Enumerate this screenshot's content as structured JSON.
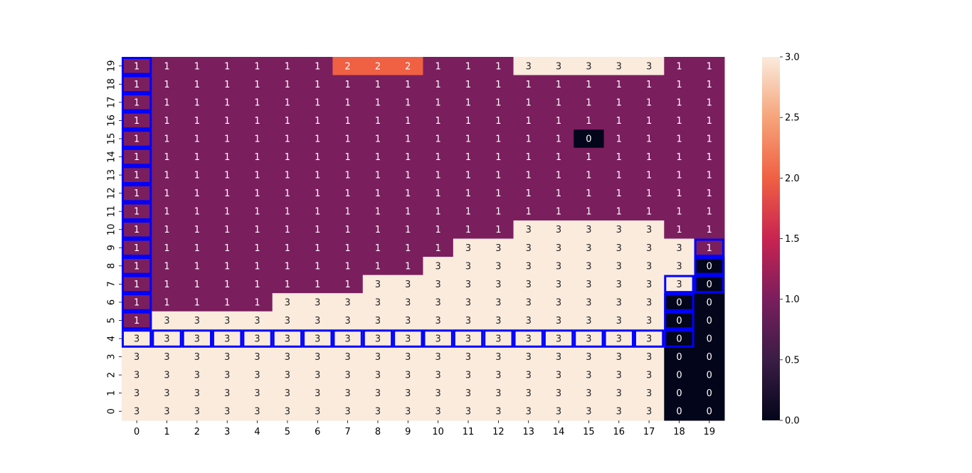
{
  "chart_data": {
    "type": "heatmap",
    "title": "",
    "xlabel": "",
    "ylabel": "",
    "x_tick_labels": [
      "0",
      "1",
      "2",
      "3",
      "4",
      "5",
      "6",
      "7",
      "8",
      "9",
      "10",
      "11",
      "12",
      "13",
      "14",
      "15",
      "16",
      "17",
      "18",
      "19"
    ],
    "y_tick_labels": [
      "19",
      "18",
      "17",
      "16",
      "15",
      "14",
      "13",
      "12",
      "11",
      "10",
      "9",
      "8",
      "7",
      "6",
      "5",
      "4",
      "3",
      "2",
      "1",
      "0"
    ],
    "rows": [
      [
        1,
        1,
        1,
        1,
        1,
        1,
        1,
        2,
        2,
        2,
        1,
        1,
        1,
        3,
        3,
        3,
        3,
        3,
        1,
        1
      ],
      [
        1,
        1,
        1,
        1,
        1,
        1,
        1,
        1,
        1,
        1,
        1,
        1,
        1,
        1,
        1,
        1,
        1,
        1,
        1,
        1
      ],
      [
        1,
        1,
        1,
        1,
        1,
        1,
        1,
        1,
        1,
        1,
        1,
        1,
        1,
        1,
        1,
        1,
        1,
        1,
        1,
        1
      ],
      [
        1,
        1,
        1,
        1,
        1,
        1,
        1,
        1,
        1,
        1,
        1,
        1,
        1,
        1,
        1,
        1,
        1,
        1,
        1,
        1
      ],
      [
        1,
        1,
        1,
        1,
        1,
        1,
        1,
        1,
        1,
        1,
        1,
        1,
        1,
        1,
        1,
        0,
        1,
        1,
        1,
        1
      ],
      [
        1,
        1,
        1,
        1,
        1,
        1,
        1,
        1,
        1,
        1,
        1,
        1,
        1,
        1,
        1,
        1,
        1,
        1,
        1,
        1
      ],
      [
        1,
        1,
        1,
        1,
        1,
        1,
        1,
        1,
        1,
        1,
        1,
        1,
        1,
        1,
        1,
        1,
        1,
        1,
        1,
        1
      ],
      [
        1,
        1,
        1,
        1,
        1,
        1,
        1,
        1,
        1,
        1,
        1,
        1,
        1,
        1,
        1,
        1,
        1,
        1,
        1,
        1
      ],
      [
        1,
        1,
        1,
        1,
        1,
        1,
        1,
        1,
        1,
        1,
        1,
        1,
        1,
        1,
        1,
        1,
        1,
        1,
        1,
        1
      ],
      [
        1,
        1,
        1,
        1,
        1,
        1,
        1,
        1,
        1,
        1,
        1,
        1,
        1,
        3,
        3,
        3,
        3,
        3,
        1,
        1
      ],
      [
        1,
        1,
        1,
        1,
        1,
        1,
        1,
        1,
        1,
        1,
        1,
        3,
        3,
        3,
        3,
        3,
        3,
        3,
        3,
        1
      ],
      [
        1,
        1,
        1,
        1,
        1,
        1,
        1,
        1,
        1,
        1,
        3,
        3,
        3,
        3,
        3,
        3,
        3,
        3,
        3,
        0
      ],
      [
        1,
        1,
        1,
        1,
        1,
        1,
        1,
        1,
        3,
        3,
        3,
        3,
        3,
        3,
        3,
        3,
        3,
        3,
        3,
        0
      ],
      [
        1,
        1,
        1,
        1,
        1,
        3,
        3,
        3,
        3,
        3,
        3,
        3,
        3,
        3,
        3,
        3,
        3,
        3,
        0,
        0
      ],
      [
        1,
        3,
        3,
        3,
        3,
        3,
        3,
        3,
        3,
        3,
        3,
        3,
        3,
        3,
        3,
        3,
        3,
        3,
        0,
        0
      ],
      [
        3,
        3,
        3,
        3,
        3,
        3,
        3,
        3,
        3,
        3,
        3,
        3,
        3,
        3,
        3,
        3,
        3,
        3,
        0,
        0
      ],
      [
        3,
        3,
        3,
        3,
        3,
        3,
        3,
        3,
        3,
        3,
        3,
        3,
        3,
        3,
        3,
        3,
        3,
        3,
        0,
        0
      ],
      [
        3,
        3,
        3,
        3,
        3,
        3,
        3,
        3,
        3,
        3,
        3,
        3,
        3,
        3,
        3,
        3,
        3,
        3,
        0,
        0
      ],
      [
        3,
        3,
        3,
        3,
        3,
        3,
        3,
        3,
        3,
        3,
        3,
        3,
        3,
        3,
        3,
        3,
        3,
        3,
        0,
        0
      ],
      [
        3,
        3,
        3,
        3,
        3,
        3,
        3,
        3,
        3,
        3,
        3,
        3,
        3,
        3,
        3,
        3,
        3,
        3,
        0,
        0
      ]
    ],
    "color_scale": {
      "colormap": "rocket",
      "vmin": 0,
      "vmax": 3,
      "stops": [
        {
          "value": 0.0,
          "color": "#03051a"
        },
        {
          "value": 0.5,
          "color": "#3a1d45"
        },
        {
          "value": 1.0,
          "color": "#7a1e5e"
        },
        {
          "value": 1.5,
          "color": "#c82451"
        },
        {
          "value": 2.0,
          "color": "#f06043"
        },
        {
          "value": 2.5,
          "color": "#f6a47a"
        },
        {
          "value": 3.0,
          "color": "#faebdd"
        }
      ],
      "tick_labels": [
        "0.0",
        "0.5",
        "1.0",
        "1.5",
        "2.0",
        "2.5",
        "3.0"
      ],
      "tick_values": [
        0.0,
        0.5,
        1.0,
        1.5,
        2.0,
        2.5,
        3.0
      ]
    },
    "highlighted_cells": {
      "color": "#0000ff",
      "cells": [
        {
          "x": 0,
          "y": 19
        },
        {
          "x": 0,
          "y": 18
        },
        {
          "x": 0,
          "y": 17
        },
        {
          "x": 0,
          "y": 16
        },
        {
          "x": 0,
          "y": 15
        },
        {
          "x": 0,
          "y": 14
        },
        {
          "x": 0,
          "y": 13
        },
        {
          "x": 0,
          "y": 12
        },
        {
          "x": 0,
          "y": 11
        },
        {
          "x": 0,
          "y": 10
        },
        {
          "x": 0,
          "y": 9
        },
        {
          "x": 0,
          "y": 8
        },
        {
          "x": 0,
          "y": 7
        },
        {
          "x": 0,
          "y": 6
        },
        {
          "x": 0,
          "y": 5
        },
        {
          "x": 0,
          "y": 4
        },
        {
          "x": 1,
          "y": 4
        },
        {
          "x": 2,
          "y": 4
        },
        {
          "x": 3,
          "y": 4
        },
        {
          "x": 4,
          "y": 4
        },
        {
          "x": 5,
          "y": 4
        },
        {
          "x": 6,
          "y": 4
        },
        {
          "x": 7,
          "y": 4
        },
        {
          "x": 8,
          "y": 4
        },
        {
          "x": 9,
          "y": 4
        },
        {
          "x": 10,
          "y": 4
        },
        {
          "x": 11,
          "y": 4
        },
        {
          "x": 12,
          "y": 4
        },
        {
          "x": 13,
          "y": 4
        },
        {
          "x": 14,
          "y": 4
        },
        {
          "x": 15,
          "y": 4
        },
        {
          "x": 16,
          "y": 4
        },
        {
          "x": 17,
          "y": 4
        },
        {
          "x": 18,
          "y": 4
        },
        {
          "x": 18,
          "y": 5
        },
        {
          "x": 18,
          "y": 6
        },
        {
          "x": 18,
          "y": 7
        },
        {
          "x": 19,
          "y": 7
        },
        {
          "x": 19,
          "y": 8
        },
        {
          "x": 19,
          "y": 9
        }
      ]
    },
    "grid": false,
    "legend": "colorbar-right"
  }
}
